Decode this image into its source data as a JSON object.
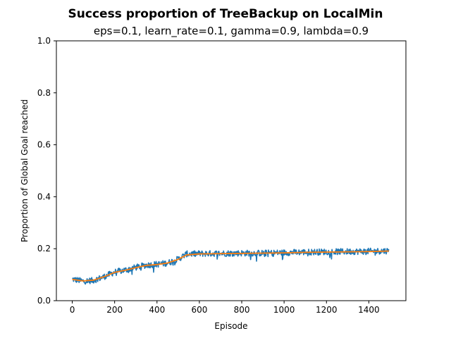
{
  "chart_data": {
    "type": "line",
    "title": "Success proportion of TreeBackup on LocalMin",
    "subtitle": "eps=0.1, learn_rate=0.1, gamma=0.9, lambda=0.9",
    "xlabel": "Episode",
    "ylabel": "Proportion of Global Goal reached",
    "xlim": [
      -75,
      1575
    ],
    "ylim": [
      0.0,
      1.0
    ],
    "xticks": [
      0,
      200,
      400,
      600,
      800,
      1000,
      1200,
      1400
    ],
    "yticks": [
      "0.0",
      "0.2",
      "0.4",
      "0.6",
      "0.8",
      "1.0"
    ],
    "grid": false,
    "series": [
      {
        "role": "raw",
        "color": "#1f77b4",
        "x_range": [
          0,
          1495
        ],
        "noise_amplitude": 0.012,
        "x": [
          0,
          50,
          100,
          150,
          200,
          250,
          300,
          350,
          400,
          450,
          500,
          540,
          600,
          700,
          800,
          900,
          1000,
          1100,
          1200,
          1300,
          1400,
          1495
        ],
        "values": [
          0.083,
          0.075,
          0.078,
          0.092,
          0.11,
          0.118,
          0.128,
          0.137,
          0.14,
          0.145,
          0.16,
          0.18,
          0.181,
          0.182,
          0.183,
          0.183,
          0.185,
          0.187,
          0.188,
          0.189,
          0.19,
          0.192
        ]
      },
      {
        "role": "smoothed",
        "color": "#ff7f0e",
        "x": [
          0,
          50,
          100,
          150,
          200,
          250,
          300,
          350,
          400,
          450,
          500,
          540,
          600,
          700,
          800,
          900,
          1000,
          1100,
          1200,
          1300,
          1400,
          1495
        ],
        "values": [
          0.082,
          0.076,
          0.079,
          0.092,
          0.109,
          0.117,
          0.127,
          0.136,
          0.139,
          0.145,
          0.159,
          0.176,
          0.18,
          0.181,
          0.182,
          0.183,
          0.184,
          0.186,
          0.187,
          0.188,
          0.189,
          0.191
        ]
      }
    ]
  }
}
